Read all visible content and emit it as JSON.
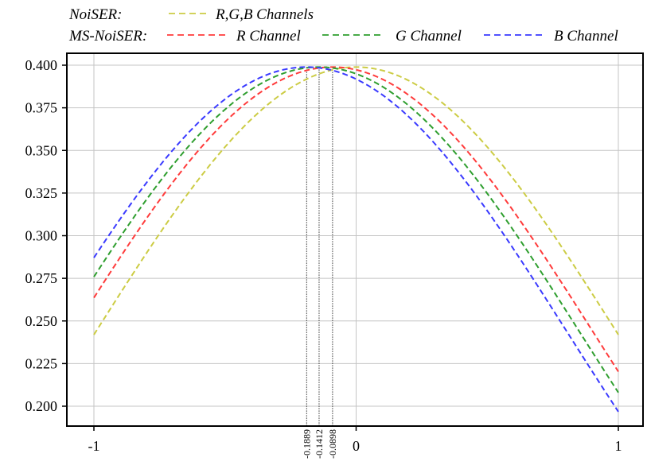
{
  "chart_data": {
    "type": "line",
    "title": "",
    "xlabel": "",
    "ylabel": "",
    "xlim": [
      -1,
      1
    ],
    "ylim": [
      0.195,
      0.405
    ],
    "grid": true,
    "legend_placement": "top",
    "legend_rows": [
      {
        "label": "NoiSER:",
        "entries": [
          {
            "series": 0,
            "label": "R,G,B Channels"
          }
        ]
      },
      {
        "label": "MS-NoiSER:",
        "entries": [
          {
            "series": 1,
            "label": "R Channel"
          },
          {
            "series": 2,
            "label": "G Channel"
          },
          {
            "series": 3,
            "label": "B Channel"
          }
        ]
      }
    ],
    "x_ticks": [
      -1,
      0,
      1
    ],
    "x_tick_labels": [
      "-1",
      "0",
      "1"
    ],
    "y_ticks": [
      0.2,
      0.225,
      0.25,
      0.275,
      0.3,
      0.325,
      0.35,
      0.375,
      0.4
    ],
    "y_tick_labels": [
      "0.200",
      "0.225",
      "0.250",
      "0.275",
      "0.300",
      "0.325",
      "0.350",
      "0.375",
      "0.400"
    ],
    "series": [
      {
        "label": "NoiSER R,G,B Channels",
        "color": "#cccc44",
        "mean": 0.0,
        "sigma": 1.0,
        "peak": 0.3989
      },
      {
        "label": "MS-NoiSER R Channel",
        "color": "#ff3b3b",
        "mean": -0.0898,
        "sigma": 1.0,
        "peak": 0.3989
      },
      {
        "label": "MS-NoiSER G Channel",
        "color": "#2e9e2e",
        "mean": -0.1412,
        "sigma": 1.0,
        "peak": 0.3989
      },
      {
        "label": "MS-NoiSER B Channel",
        "color": "#3a3aff",
        "mean": -0.1889,
        "sigma": 1.0,
        "peak": 0.3989
      }
    ],
    "vertical_markers": [
      {
        "x": -0.1889,
        "label": "-0.1889"
      },
      {
        "x": -0.1412,
        "label": "-0.1412"
      },
      {
        "x": -0.0898,
        "label": "-0.0898"
      }
    ]
  }
}
